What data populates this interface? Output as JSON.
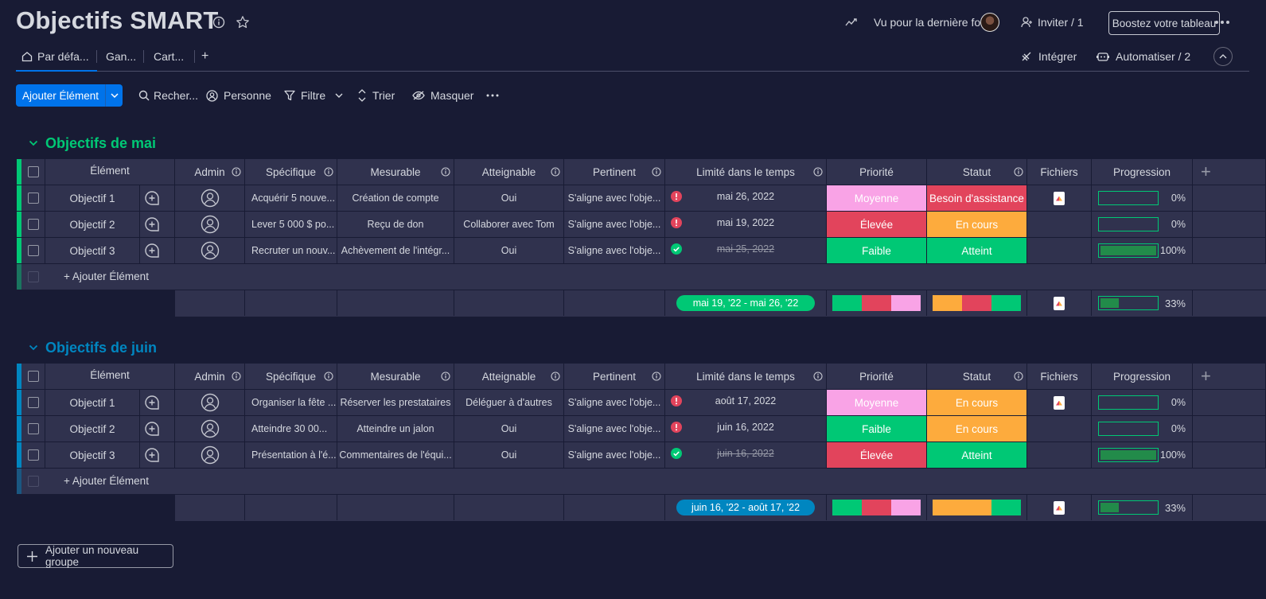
{
  "board": {
    "title": "Objectifs SMART"
  },
  "header": {
    "last_seen": "Vu pour la dernière fois",
    "invite": "Inviter / 1",
    "boost": "Boostez votre tableau"
  },
  "tabs": {
    "default": "Par défa...",
    "gantt": "Gan...",
    "card": "Cart...",
    "add": "+",
    "integrate": "Intégrer",
    "automate": "Automatiser / 2"
  },
  "toolbar": {
    "add_item": "Ajouter Élément",
    "search": "Recher...",
    "person": "Personne",
    "filter": "Filtre",
    "sort": "Trier",
    "hide": "Masquer"
  },
  "columns": {
    "element": "Élément",
    "admin": "Admin",
    "specific": "Spécifique",
    "measurable": "Mesurable",
    "attainable": "Atteignable",
    "pertinent": "Pertinent",
    "timeline": "Limité dans le temps",
    "priority": "Priorité",
    "status": "Statut",
    "files": "Fichiers",
    "progress": "Progression",
    "add": "+"
  },
  "colors": {
    "accent": "#0073ea",
    "green_group": "#00c875",
    "blue_group": "#0086c0",
    "moyenne": "#f9a3e6",
    "elevee": "#e2445c",
    "faible": "#00c875",
    "besoin": "#e2445c",
    "en_cours": "#fdab3d",
    "atteint": "#00c875"
  },
  "groups": [
    {
      "title": "Objectifs de mai",
      "color": "#00c875",
      "rows": [
        {
          "name": "Objectif 1",
          "specific": "Acquérir 5 nouve...",
          "measurable": "Création de compte",
          "attainable": "Oui",
          "pertinent": "S'aligne avec l'obje...",
          "date": "mai 26, 2022",
          "date_status": "alert",
          "priority": "Moyenne",
          "priority_color": "#f9a3e6",
          "status": "Besoin d'assistance",
          "status_color": "#e2445c",
          "has_file": true,
          "progress": "0%",
          "progress_value": 0
        },
        {
          "name": "Objectif 2",
          "specific": "Lever 5 000 $ po...",
          "measurable": "Reçu de don",
          "attainable": "Collaborer avec Tom",
          "pertinent": "S'aligne avec l'obje...",
          "date": "mai 19, 2022",
          "date_status": "alert",
          "priority": "Élevée",
          "priority_color": "#e2445c",
          "status": "En cours",
          "status_color": "#fdab3d",
          "has_file": false,
          "progress": "0%",
          "progress_value": 0
        },
        {
          "name": "Objectif 3",
          "specific": "Recruter un nouv...",
          "measurable": "Achèvement de l'intégr...",
          "attainable": "Oui",
          "pertinent": "S'aligne avec l'obje...",
          "date": "mai 25, 2022",
          "date_status": "done",
          "priority": "Faible",
          "priority_color": "#00c875",
          "status": "Atteint",
          "status_color": "#00c875",
          "has_file": false,
          "progress": "100%",
          "progress_value": 100
        }
      ],
      "add_item": "+ Ajouter Élément",
      "summary": {
        "timeline": "mai 19, '22 - mai 26, '22",
        "timeline_color": "#00c875",
        "priority_dist": [
          {
            "color": "#00c875",
            "fraction": 0.333
          },
          {
            "color": "#e2445c",
            "fraction": 0.333
          },
          {
            "color": "#f9a3e6",
            "fraction": 0.334
          }
        ],
        "status_dist": [
          {
            "color": "#fdab3d",
            "fraction": 0.333
          },
          {
            "color": "#e2445c",
            "fraction": 0.333
          },
          {
            "color": "#00c875",
            "fraction": 0.334
          }
        ],
        "progress": "33%",
        "progress_value": 33
      }
    },
    {
      "title": "Objectifs de juin",
      "color": "#0086c0",
      "rows": [
        {
          "name": "Objectif 1",
          "specific": "Organiser la fête ...",
          "measurable": "Réserver les prestataires",
          "attainable": "Déléguer à d'autres",
          "pertinent": "S'aligne avec l'obje...",
          "date": "août 17, 2022",
          "date_status": "alert",
          "priority": "Moyenne",
          "priority_color": "#f9a3e6",
          "status": "En cours",
          "status_color": "#fdab3d",
          "has_file": true,
          "progress": "0%",
          "progress_value": 0
        },
        {
          "name": "Objectif 2",
          "specific": "Atteindre 30 00...",
          "measurable": "Atteindre un jalon",
          "attainable": "Oui",
          "pertinent": "S'aligne avec l'obje...",
          "date": "juin 16, 2022",
          "date_status": "alert",
          "priority": "Faible",
          "priority_color": "#00c875",
          "status": "En cours",
          "status_color": "#fdab3d",
          "has_file": false,
          "progress": "0%",
          "progress_value": 0
        },
        {
          "name": "Objectif 3",
          "specific": "Présentation à l'é...",
          "measurable": "Commentaires de l'équi...",
          "attainable": "Oui",
          "pertinent": "S'aligne avec l'obje...",
          "date": "juin 16, 2022",
          "date_status": "done",
          "priority": "Élevée",
          "priority_color": "#e2445c",
          "status": "Atteint",
          "status_color": "#00c875",
          "has_file": false,
          "progress": "100%",
          "progress_value": 100
        }
      ],
      "add_item": "+ Ajouter Élément",
      "summary": {
        "timeline": "juin 16, '22 - août 17, '22",
        "timeline_color": "#0086c0",
        "priority_dist": [
          {
            "color": "#00c875",
            "fraction": 0.333
          },
          {
            "color": "#e2445c",
            "fraction": 0.333
          },
          {
            "color": "#f9a3e6",
            "fraction": 0.334
          }
        ],
        "status_dist": [
          {
            "color": "#fdab3d",
            "fraction": 0.667
          },
          {
            "color": "#00c875",
            "fraction": 0.333
          }
        ],
        "progress": "33%",
        "progress_value": 33
      }
    }
  ],
  "footer": {
    "new_group": "Ajouter un nouveau groupe"
  }
}
